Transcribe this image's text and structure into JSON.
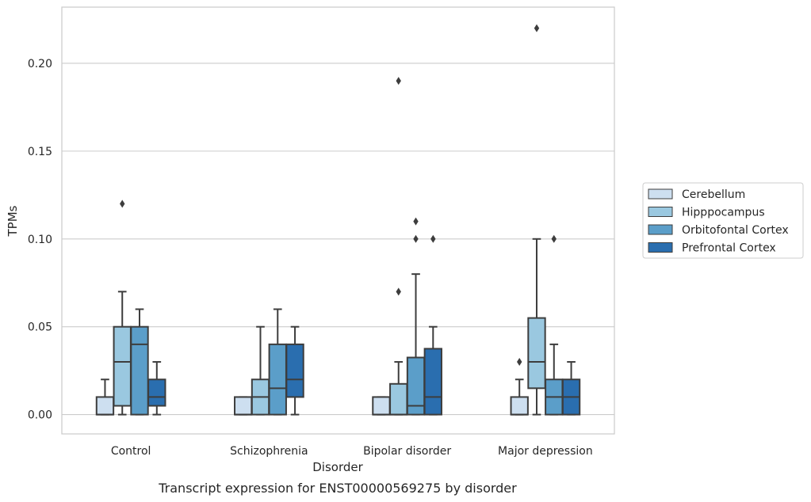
{
  "chart_data": {
    "type": "box",
    "title": "",
    "caption": "Transcript expression for ENST00000569275 by disorder",
    "xlabel": "Disorder",
    "ylabel": "TPMs",
    "ylim": [
      -0.011,
      0.232
    ],
    "yticks": [
      0.0,
      0.05,
      0.1,
      0.15,
      0.2
    ],
    "ytick_labels": [
      "0.00",
      "0.05",
      "0.10",
      "0.15",
      "0.20"
    ],
    "grid": "horizontal",
    "legend_position": "right-center",
    "categories": [
      "Control",
      "Schizophrenia",
      "Bipolar disorder",
      "Major depression"
    ],
    "series": [
      {
        "name": "Cerebellum",
        "color": "#cddff0",
        "boxes": [
          {
            "whislo": 0.0,
            "q1": 0.0,
            "med": 0.0,
            "q3": 0.01,
            "whishi": 0.02,
            "fliers": []
          },
          {
            "whislo": 0.0,
            "q1": 0.0,
            "med": 0.0,
            "q3": 0.01,
            "whishi": 0.01,
            "fliers": []
          },
          {
            "whislo": 0.0,
            "q1": 0.0,
            "med": 0.0,
            "q3": 0.01,
            "whishi": 0.01,
            "fliers": []
          },
          {
            "whislo": 0.0,
            "q1": 0.0,
            "med": 0.0,
            "q3": 0.01,
            "whishi": 0.02,
            "fliers": [
              0.03
            ]
          }
        ]
      },
      {
        "name": "Hipppocampus",
        "color": "#9ac8e0",
        "boxes": [
          {
            "whislo": 0.0,
            "q1": 0.005,
            "med": 0.03,
            "q3": 0.05,
            "whishi": 0.07,
            "fliers": [
              0.12
            ]
          },
          {
            "whislo": 0.0,
            "q1": 0.0,
            "med": 0.01,
            "q3": 0.02,
            "whishi": 0.05,
            "fliers": []
          },
          {
            "whislo": 0.0,
            "q1": 0.0,
            "med": 0.0,
            "q3": 0.0175,
            "whishi": 0.03,
            "fliers": [
              0.07,
              0.19
            ]
          },
          {
            "whislo": 0.0,
            "q1": 0.015,
            "med": 0.03,
            "q3": 0.055,
            "whishi": 0.1,
            "fliers": [
              0.22
            ]
          }
        ]
      },
      {
        "name": "Orbitofontal Cortex",
        "color": "#5b9ec9",
        "boxes": [
          {
            "whislo": 0.0,
            "q1": 0.0,
            "med": 0.04,
            "q3": 0.05,
            "whishi": 0.06,
            "fliers": []
          },
          {
            "whislo": 0.0,
            "q1": 0.0,
            "med": 0.015,
            "q3": 0.04,
            "whishi": 0.06,
            "fliers": []
          },
          {
            "whislo": 0.0,
            "q1": 0.0,
            "med": 0.005,
            "q3": 0.0325,
            "whishi": 0.08,
            "fliers": [
              0.1,
              0.11
            ]
          },
          {
            "whislo": 0.0,
            "q1": 0.0,
            "med": 0.01,
            "q3": 0.02,
            "whishi": 0.04,
            "fliers": [
              0.1
            ]
          }
        ]
      },
      {
        "name": "Prefrontal Cortex",
        "color": "#2a6eaf",
        "boxes": [
          {
            "whislo": 0.0,
            "q1": 0.005,
            "med": 0.01,
            "q3": 0.02,
            "whishi": 0.03,
            "fliers": []
          },
          {
            "whislo": 0.0,
            "q1": 0.01,
            "med": 0.02,
            "q3": 0.04,
            "whishi": 0.05,
            "fliers": []
          },
          {
            "whislo": 0.0,
            "q1": 0.0,
            "med": 0.01,
            "q3": 0.0375,
            "whishi": 0.05,
            "fliers": [
              0.1
            ]
          },
          {
            "whislo": 0.0,
            "q1": 0.0,
            "med": 0.01,
            "q3": 0.02,
            "whishi": 0.03,
            "fliers": []
          }
        ]
      }
    ]
  }
}
